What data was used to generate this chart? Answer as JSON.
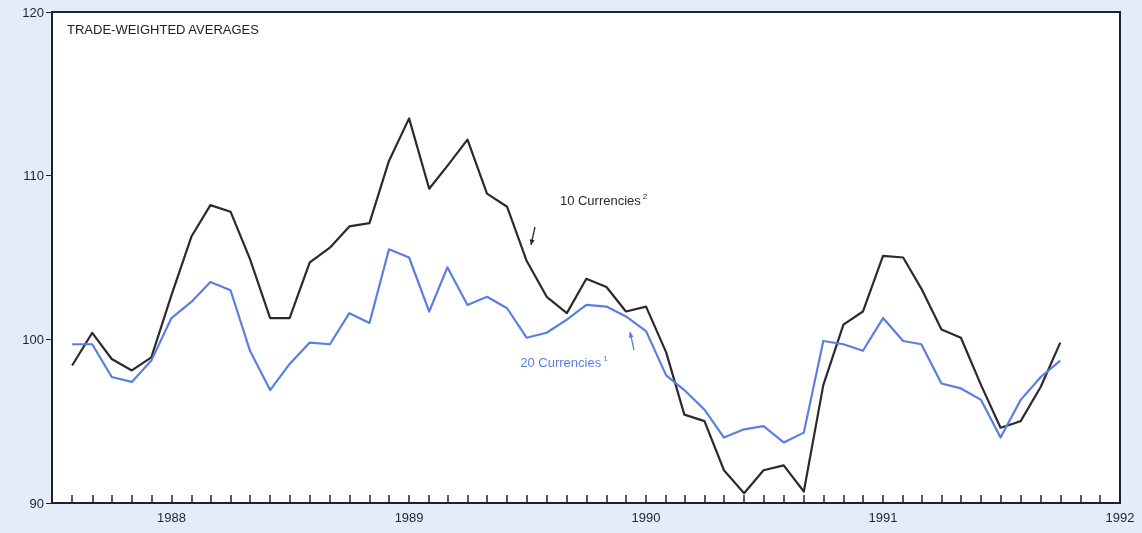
{
  "chart_data": {
    "type": "line",
    "title": "TRADE-WEIGHTED AVERAGES",
    "x": [
      "1987-08",
      "1987-09",
      "1987-10",
      "1987-11",
      "1987-12",
      "1988-01",
      "1988-02",
      "1988-03",
      "1988-04",
      "1988-05",
      "1988-06",
      "1988-07",
      "1988-08",
      "1988-09",
      "1988-10",
      "1988-11",
      "1988-12",
      "1989-01",
      "1989-02",
      "1989-03",
      "1989-04",
      "1989-05",
      "1989-06",
      "1989-07",
      "1989-08",
      "1989-09",
      "1989-10",
      "1989-11",
      "1989-12",
      "1990-01",
      "1990-02",
      "1990-03",
      "1990-04",
      "1990-05",
      "1990-06",
      "1990-07",
      "1990-08",
      "1990-09",
      "1990-10",
      "1990-11",
      "1990-12",
      "1991-01",
      "1991-02",
      "1991-03",
      "1991-04",
      "1991-05",
      "1991-06",
      "1991-07",
      "1991-08",
      "1991-09",
      "1991-10"
    ],
    "series": [
      {
        "name": "10 Currencies$^{2}$",
        "color": "#2a2a30",
        "values": [
          98.4,
          100.4,
          98.8,
          98.1,
          98.9,
          102.7,
          106.3,
          108.2,
          107.8,
          104.9,
          101.3,
          101.3,
          104.7,
          105.6,
          106.9,
          107.1,
          110.9,
          113.5,
          109.2,
          110.6,
          112.2,
          108.9,
          108.1,
          104.8,
          102.6,
          101.6,
          103.7,
          103.2,
          101.7,
          102.0,
          99.2,
          95.4,
          95.0,
          92.0,
          90.6,
          92.0,
          92.3,
          90.7,
          97.2,
          100.9,
          101.7,
          105.1,
          105.0,
          103.1,
          100.6,
          100.1,
          97.2,
          94.6,
          95.0,
          97.1,
          99.8
        ]
      },
      {
        "name": "20 Currencies$^{1}$",
        "color": "#5b7fe0",
        "values": [
          99.7,
          99.7,
          97.7,
          97.4,
          98.7,
          101.3,
          102.3,
          103.5,
          103.0,
          99.3,
          96.9,
          98.5,
          99.8,
          99.7,
          101.6,
          101.0,
          105.5,
          105.0,
          101.7,
          104.4,
          102.1,
          102.6,
          101.9,
          100.1,
          100.4,
          101.2,
          102.1,
          102.0,
          101.4,
          100.5,
          97.8,
          96.9,
          95.7,
          94.0,
          94.5,
          94.7,
          93.7,
          94.3,
          99.9,
          99.7,
          99.3,
          101.3,
          99.9,
          99.7,
          97.3,
          97.0,
          96.3,
          94.0,
          96.3,
          97.7,
          98.7
        ]
      }
    ],
    "xlim": [
      "1987-07",
      "1992-01"
    ],
    "xticks": [
      {
        "value": "1987-08",
        "label": null
      },
      {
        "value": "1987-09",
        "label": null
      },
      {
        "value": "1987-10",
        "label": null
      },
      {
        "value": "1987-11",
        "label": null
      },
      {
        "value": "1987-12",
        "label": null
      },
      {
        "value": "1988-01",
        "label": "1988"
      },
      {
        "value": "1988-02",
        "label": null
      },
      {
        "value": "1988-03",
        "label": null
      },
      {
        "value": "1988-04",
        "label": null
      },
      {
        "value": "1988-05",
        "label": null
      },
      {
        "value": "1988-06",
        "label": null
      },
      {
        "value": "1988-07",
        "label": null
      },
      {
        "value": "1988-08",
        "label": null
      },
      {
        "value": "1988-09",
        "label": null
      },
      {
        "value": "1988-10",
        "label": null
      },
      {
        "value": "1988-11",
        "label": null
      },
      {
        "value": "1988-12",
        "label": null
      },
      {
        "value": "1989-01",
        "label": "1989"
      },
      {
        "value": "1989-02",
        "label": null
      },
      {
        "value": "1989-03",
        "label": null
      },
      {
        "value": "1989-04",
        "label": null
      },
      {
        "value": "1989-05",
        "label": null
      },
      {
        "value": "1989-06",
        "label": null
      },
      {
        "value": "1989-07",
        "label": null
      },
      {
        "value": "1989-08",
        "label": null
      },
      {
        "value": "1989-09",
        "label": null
      },
      {
        "value": "1989-10",
        "label": null
      },
      {
        "value": "1989-11",
        "label": null
      },
      {
        "value": "1989-12",
        "label": null
      },
      {
        "value": "1990-01",
        "label": "1990"
      },
      {
        "value": "1990-02",
        "label": null
      },
      {
        "value": "1990-03",
        "label": null
      },
      {
        "value": "1990-04",
        "label": null
      },
      {
        "value": "1990-05",
        "label": null
      },
      {
        "value": "1990-06",
        "label": null
      },
      {
        "value": "1990-07",
        "label": null
      },
      {
        "value": "1990-08",
        "label": null
      },
      {
        "value": "1990-09",
        "label": null
      },
      {
        "value": "1990-10",
        "label": null
      },
      {
        "value": "1990-11",
        "label": null
      },
      {
        "value": "1990-12",
        "label": null
      },
      {
        "value": "1991-01",
        "label": "1991"
      },
      {
        "value": "1991-02",
        "label": null
      },
      {
        "value": "1991-03",
        "label": null
      },
      {
        "value": "1991-04",
        "label": null
      },
      {
        "value": "1991-05",
        "label": null
      },
      {
        "value": "1991-06",
        "label": null
      },
      {
        "value": "1991-07",
        "label": null
      },
      {
        "value": "1991-08",
        "label": null
      },
      {
        "value": "1991-09",
        "label": null
      },
      {
        "value": "1991-10",
        "label": null
      },
      {
        "value": "1991-11",
        "label": null
      },
      {
        "value": "1991-12",
        "label": null
      },
      {
        "value": "1992-01",
        "label": "1992"
      }
    ],
    "ylim": [
      90,
      120
    ],
    "yticks": [
      90,
      100,
      110,
      120
    ],
    "grid": false,
    "legend": false,
    "marker": "none",
    "line_style": "solid"
  }
}
